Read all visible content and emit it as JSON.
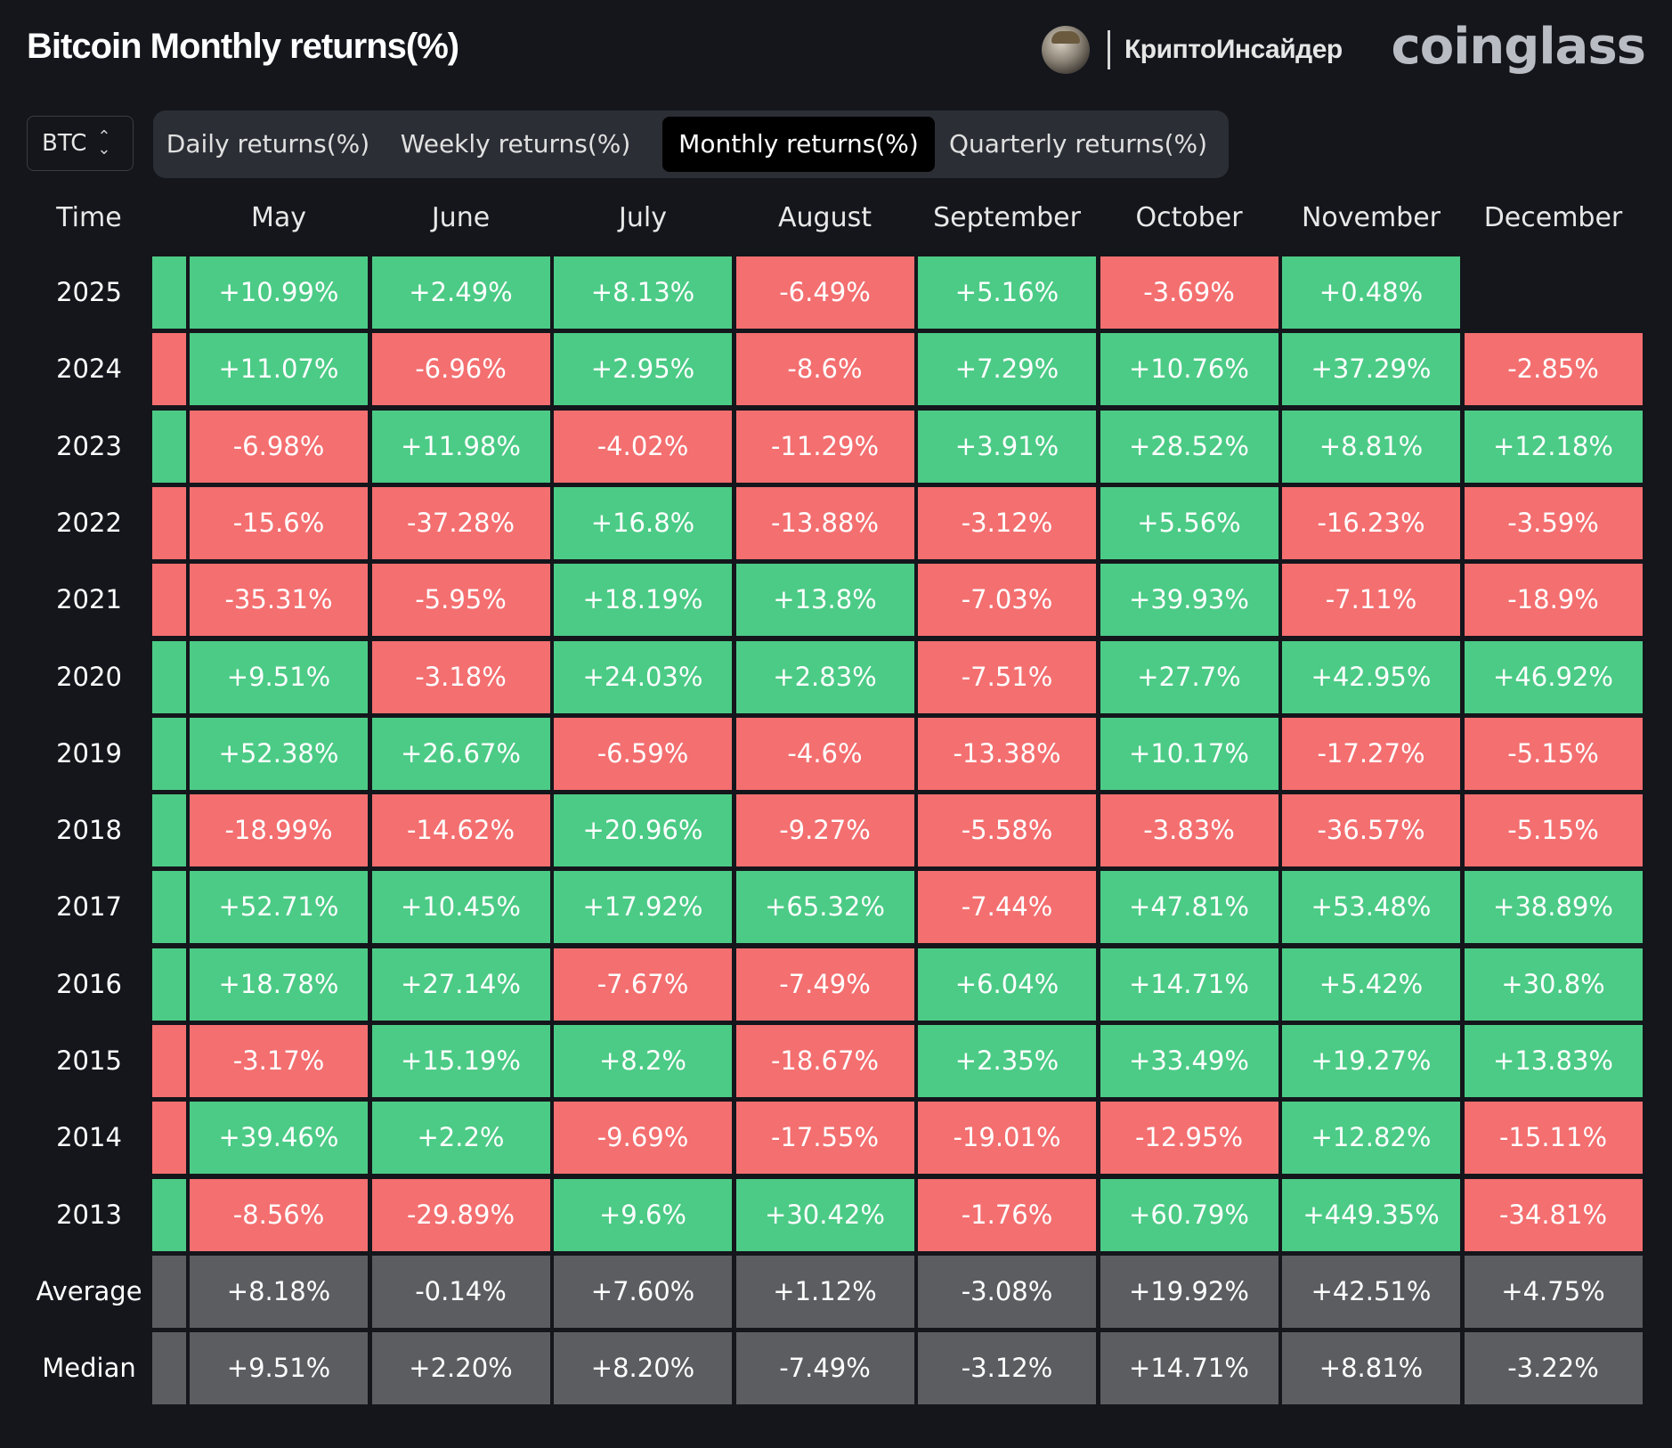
{
  "header": {
    "title": "Bitcoin Monthly returns(%)",
    "partner": "КриптоИнсайдер",
    "brand": "coinglass"
  },
  "coin_select": {
    "value": "BTC"
  },
  "tabs": [
    {
      "label": "Daily returns(%)",
      "active": false
    },
    {
      "label": "Weekly returns(%)",
      "active": false
    },
    {
      "label": "Monthly returns(%)",
      "active": true
    },
    {
      "label": "Quarterly returns(%)",
      "active": false
    }
  ],
  "colors": {
    "positive": "#4ccb86",
    "negative": "#f46f70",
    "stat": "#5b5d61",
    "background": "#14161c"
  },
  "table": {
    "time_header": "Time",
    "columns": [
      "May",
      "June",
      "July",
      "August",
      "September",
      "October",
      "November",
      "December"
    ],
    "rows": [
      {
        "label": "2025",
        "lead": "pos",
        "values": [
          "+10.99%",
          "+2.49%",
          "+8.13%",
          "-6.49%",
          "+5.16%",
          "-3.69%",
          "+0.48%",
          ""
        ]
      },
      {
        "label": "2024",
        "lead": "neg",
        "values": [
          "+11.07%",
          "-6.96%",
          "+2.95%",
          "-8.6%",
          "+7.29%",
          "+10.76%",
          "+37.29%",
          "-2.85%"
        ]
      },
      {
        "label": "2023",
        "lead": "pos",
        "values": [
          "-6.98%",
          "+11.98%",
          "-4.02%",
          "-11.29%",
          "+3.91%",
          "+28.52%",
          "+8.81%",
          "+12.18%"
        ]
      },
      {
        "label": "2022",
        "lead": "neg",
        "values": [
          "-15.6%",
          "-37.28%",
          "+16.8%",
          "-13.88%",
          "-3.12%",
          "+5.56%",
          "-16.23%",
          "-3.59%"
        ]
      },
      {
        "label": "2021",
        "lead": "neg",
        "values": [
          "-35.31%",
          "-5.95%",
          "+18.19%",
          "+13.8%",
          "-7.03%",
          "+39.93%",
          "-7.11%",
          "-18.9%"
        ]
      },
      {
        "label": "2020",
        "lead": "pos",
        "values": [
          "+9.51%",
          "-3.18%",
          "+24.03%",
          "+2.83%",
          "-7.51%",
          "+27.7%",
          "+42.95%",
          "+46.92%"
        ]
      },
      {
        "label": "2019",
        "lead": "pos",
        "values": [
          "+52.38%",
          "+26.67%",
          "-6.59%",
          "-4.6%",
          "-13.38%",
          "+10.17%",
          "-17.27%",
          "-5.15%"
        ]
      },
      {
        "label": "2018",
        "lead": "pos",
        "values": [
          "-18.99%",
          "-14.62%",
          "+20.96%",
          "-9.27%",
          "-5.58%",
          "-3.83%",
          "-36.57%",
          "-5.15%"
        ]
      },
      {
        "label": "2017",
        "lead": "pos",
        "values": [
          "+52.71%",
          "+10.45%",
          "+17.92%",
          "+65.32%",
          "-7.44%",
          "+47.81%",
          "+53.48%",
          "+38.89%"
        ]
      },
      {
        "label": "2016",
        "lead": "pos",
        "values": [
          "+18.78%",
          "+27.14%",
          "-7.67%",
          "-7.49%",
          "+6.04%",
          "+14.71%",
          "+5.42%",
          "+30.8%"
        ]
      },
      {
        "label": "2015",
        "lead": "neg",
        "values": [
          "-3.17%",
          "+15.19%",
          "+8.2%",
          "-18.67%",
          "+2.35%",
          "+33.49%",
          "+19.27%",
          "+13.83%"
        ]
      },
      {
        "label": "2014",
        "lead": "neg",
        "values": [
          "+39.46%",
          "+2.2%",
          "-9.69%",
          "-17.55%",
          "-19.01%",
          "-12.95%",
          "+12.82%",
          "-15.11%"
        ]
      },
      {
        "label": "2013",
        "lead": "pos",
        "values": [
          "-8.56%",
          "-29.89%",
          "+9.6%",
          "+30.42%",
          "-1.76%",
          "+60.79%",
          "+449.35%",
          "-34.81%"
        ]
      }
    ],
    "stats": [
      {
        "label": "Average",
        "values": [
          "+8.18%",
          "-0.14%",
          "+7.60%",
          "+1.12%",
          "-3.08%",
          "+19.92%",
          "+42.51%",
          "+4.75%"
        ]
      },
      {
        "label": "Median",
        "values": [
          "+9.51%",
          "+2.20%",
          "+8.20%",
          "-7.49%",
          "-3.12%",
          "+14.71%",
          "+8.81%",
          "-3.22%"
        ]
      }
    ]
  }
}
